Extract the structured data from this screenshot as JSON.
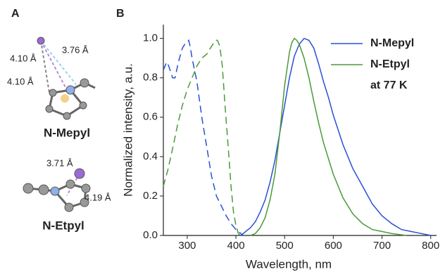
{
  "panel_a": {
    "label": "A",
    "molecules": [
      {
        "name": "N-Mepyl",
        "distances": [
          "3.76 Å",
          "4.10 Å",
          "4.10 Å"
        ]
      },
      {
        "name": "N-Etpyl",
        "distances": [
          "3.71 Å",
          "4.19 Å"
        ]
      }
    ]
  },
  "chart_data": {
    "type": "line",
    "panel_label": "B",
    "x_label": "Wavelength, nm",
    "y_label": "Normalized intensity, a.u.",
    "xlim": [
      251,
      812
    ],
    "xticks": [
      300,
      400,
      500,
      600,
      700,
      800
    ],
    "ylim": [
      0,
      1.07
    ],
    "yticks": [
      {
        "value": 0,
        "label": "0.0"
      },
      0.2,
      0.4,
      0.6,
      0.8,
      {
        "value": 1,
        "label": "1.0"
      }
    ],
    "legend_note": "at 77 K",
    "series": [
      {
        "color": "#2a4fd6",
        "dashed": true,
        "x": [
          251,
          258,
          262,
          270,
          275,
          282,
          290,
          295,
          300,
          303,
          306,
          310,
          320,
          330,
          340,
          350,
          360,
          370,
          380,
          390,
          400,
          410,
          415
        ],
        "values": [
          0.84,
          0.88,
          0.86,
          0.8,
          0.8,
          0.88,
          0.95,
          0.97,
          0.98,
          0.99,
          0.96,
          0.9,
          0.78,
          0.6,
          0.45,
          0.3,
          0.2,
          0.15,
          0.1,
          0.06,
          0.03,
          0.01,
          0
        ]
      },
      {
        "color": "#4a9a3a",
        "dashed": true,
        "x": [
          251,
          260,
          270,
          280,
          290,
          300,
          310,
          320,
          330,
          340,
          345,
          350,
          358,
          362,
          367,
          372,
          378,
          385,
          390,
          395,
          400,
          405,
          410
        ],
        "values": [
          0.25,
          0.33,
          0.44,
          0.56,
          0.66,
          0.74,
          0.8,
          0.86,
          0.9,
          0.92,
          0.94,
          0.96,
          0.99,
          0.99,
          0.96,
          0.86,
          0.65,
          0.42,
          0.25,
          0.12,
          0.05,
          0.01,
          0
        ]
      },
      {
        "name": "N-Mepyl",
        "color": "#2a4fd6",
        "dashed": false,
        "x": [
          410,
          420,
          430,
          440,
          450,
          460,
          470,
          480,
          490,
          500,
          510,
          520,
          530,
          540,
          550,
          560,
          570,
          580,
          590,
          600,
          620,
          640,
          660,
          680,
          700,
          720,
          740,
          760,
          780,
          800
        ],
        "values": [
          0,
          0.02,
          0.04,
          0.07,
          0.12,
          0.18,
          0.27,
          0.38,
          0.52,
          0.66,
          0.8,
          0.91,
          0.97,
          1,
          0.99,
          0.95,
          0.87,
          0.78,
          0.7,
          0.61,
          0.46,
          0.34,
          0.25,
          0.16,
          0.1,
          0.06,
          0.03,
          0.02,
          0.01,
          0
        ]
      },
      {
        "name": "N-Etpyl",
        "color": "#4a9a3a",
        "dashed": false,
        "x": [
          430,
          440,
          450,
          460,
          470,
          480,
          490,
          500,
          510,
          515,
          520,
          525,
          530,
          540,
          550,
          560,
          570,
          580,
          600,
          620,
          640,
          660,
          680,
          700,
          720,
          750
        ],
        "values": [
          0,
          0.01,
          0.04,
          0.09,
          0.18,
          0.31,
          0.52,
          0.76,
          0.93,
          0.98,
          1,
          0.99,
          0.97,
          0.9,
          0.8,
          0.68,
          0.57,
          0.47,
          0.31,
          0.19,
          0.11,
          0.06,
          0.03,
          0.02,
          0.01,
          0
        ]
      }
    ]
  }
}
